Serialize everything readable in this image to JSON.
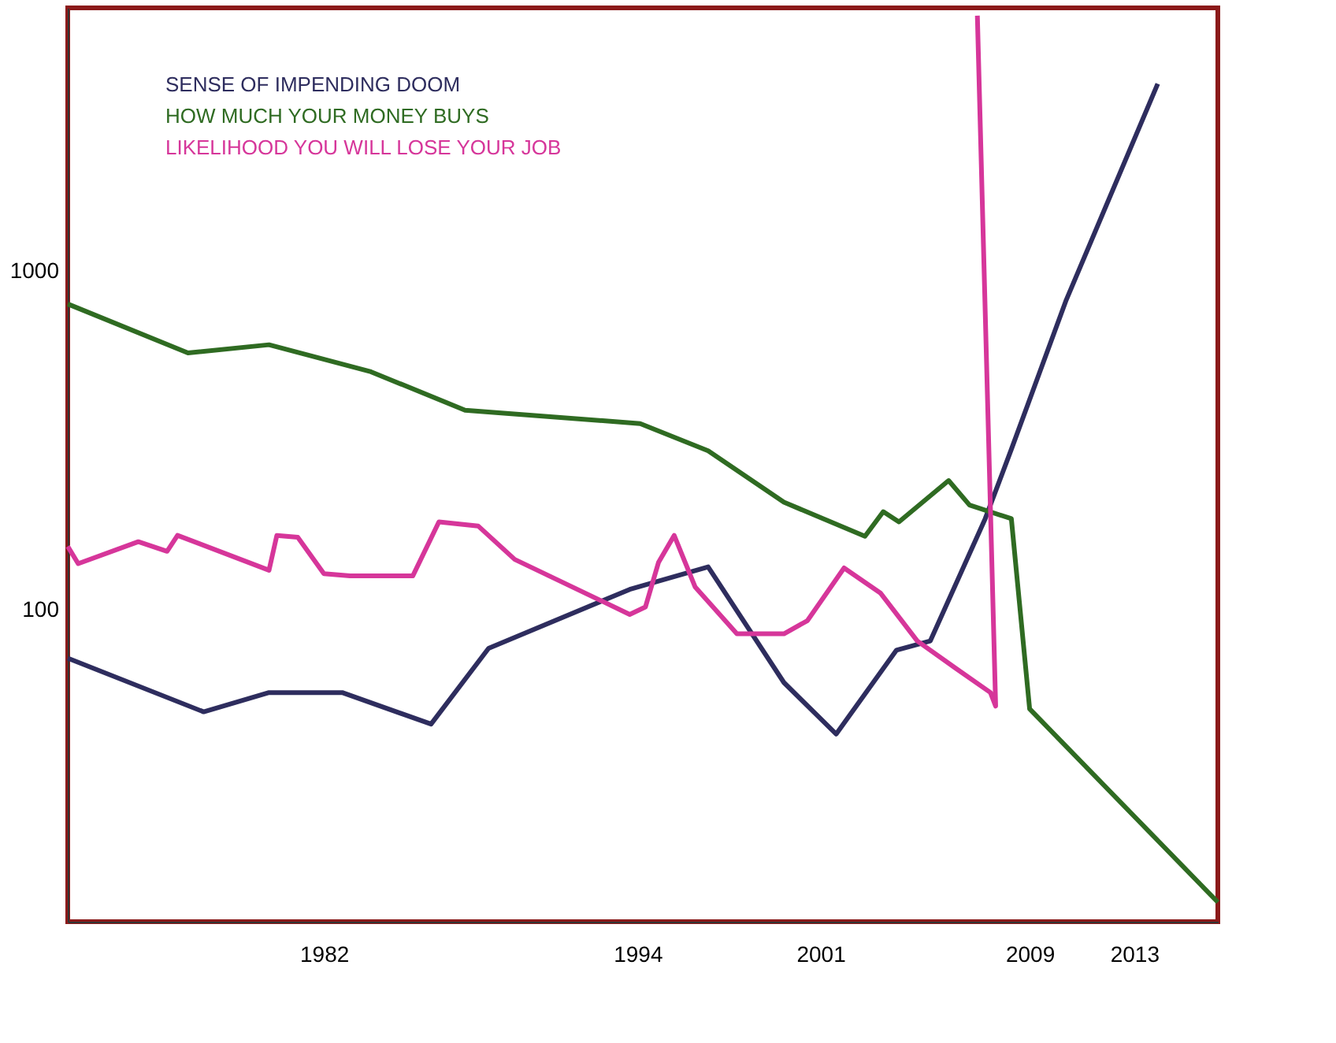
{
  "chart_data": {
    "type": "line",
    "log": "y",
    "xlim": [
      1972.2,
      2016.2
    ],
    "ylim": [
      12,
      6000
    ],
    "xticks": [
      1982,
      1994,
      2001,
      2009,
      2013
    ],
    "yticks": [
      100,
      1000
    ],
    "grid": false,
    "legend": "top left",
    "line_style": "solid",
    "marker": "none",
    "series": [
      {
        "name": "SENSE OF IMPENDING DOOM",
        "color": "#2e2d5e",
        "x": [
          1972.2,
          1977.4,
          1979.9,
          1982.7,
          1986.1,
          1988.3,
          1993.7,
          1996.7,
          1999.6,
          2001.6,
          2003.9,
          2005.2,
          2007.3,
          2008.3,
          2010.4,
          2013.9
        ],
        "values": [
          72,
          50,
          57,
          57,
          46,
          77,
          115,
          134,
          61,
          43,
          76,
          81,
          186,
          298,
          823,
          3580
        ]
      },
      {
        "name": "HOW MUCH YOUR MONEY BUYS",
        "color": "#2f6b22",
        "x": [
          1972.2,
          1976.8,
          1979.9,
          1983.8,
          1987.4,
          1994.1,
          1996.7,
          1999.6,
          2002.7,
          2003.4,
          2004.0,
          2005.9,
          2006.7,
          2008.3,
          2009.0,
          2016.2
        ],
        "values": [
          801,
          574,
          607,
          505,
          389,
          355,
          295,
          208,
          165,
          195,
          182,
          241,
          204,
          186,
          51,
          13.7
        ]
      },
      {
        "name": "LIKELIHOOD YOU WILL LOSE YOUR JOB",
        "color": "#d6369a",
        "x": [
          1972.2,
          1972.6,
          1974.9,
          1976.0,
          1976.4,
          1979.9,
          1980.2,
          1981.0,
          1982.0,
          1983.0,
          1985.4,
          1986.4,
          1987.9,
          1989.3,
          1993.7,
          1994.3,
          1994.8,
          1995.4,
          1996.2,
          1997.8,
          1999.6,
          2000.5,
          2001.9,
          2003.3,
          2004.7,
          2006.2,
          2007.5,
          2007.7,
          2007.0
        ],
        "values": [
          154,
          137,
          159,
          149,
          166,
          131,
          166,
          164,
          128,
          126,
          126,
          182,
          177,
          141,
          97,
          102,
          138,
          166,
          117,
          85,
          85,
          93,
          133,
          112,
          81,
          67,
          57,
          52,
          5690
        ]
      }
    ]
  }
}
